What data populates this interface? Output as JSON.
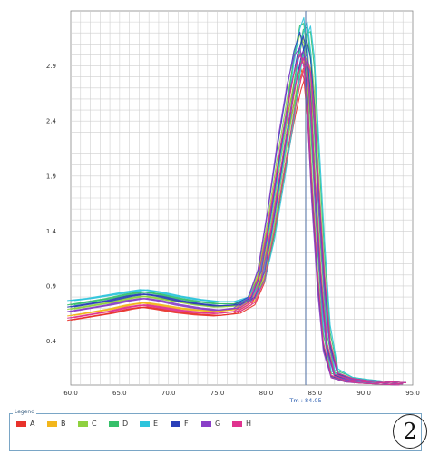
{
  "chart_data": {
    "type": "line",
    "xlim": [
      60.0,
      95.0
    ],
    "ylim": [
      0.0,
      3.4
    ],
    "x_ticks": [
      "60.0",
      "65.0",
      "70.0",
      "75.0",
      "80.0",
      "85.0",
      "90.0",
      "95.0"
    ],
    "y_ticks": [
      "0.4",
      "0.9",
      "1.4",
      "1.9",
      "2.4",
      "2.9"
    ],
    "y_tick_values": [
      0.4,
      0.9,
      1.4,
      1.9,
      2.4,
      2.9
    ],
    "grid": true,
    "tm_line": {
      "x": 84.05,
      "label": "Tm : 84.05"
    },
    "legend_position": "bottom",
    "legend_title": "Legend",
    "x": [
      60,
      62,
      64,
      66,
      67.5,
      69,
      71,
      73,
      75,
      77,
      78.5,
      79.5,
      80.5,
      81.5,
      82.5,
      83.2,
      83.8,
      84.2,
      84.6,
      85,
      85.6,
      86.2,
      87,
      88.5,
      90,
      92,
      94
    ],
    "series": [
      {
        "name": "A",
        "values": [
          0.6,
          0.63,
          0.66,
          0.7,
          0.72,
          0.7,
          0.67,
          0.65,
          0.64,
          0.66,
          0.74,
          0.95,
          1.4,
          1.95,
          2.45,
          2.75,
          2.92,
          2.8,
          2.4,
          1.75,
          0.95,
          0.35,
          0.08,
          0.04,
          0.03,
          0.02,
          0.01
        ]
      },
      {
        "name": "B",
        "values": [
          0.64,
          0.67,
          0.7,
          0.74,
          0.76,
          0.74,
          0.71,
          0.69,
          0.68,
          0.7,
          0.78,
          1.0,
          1.45,
          2.0,
          2.5,
          2.85,
          3.05,
          2.95,
          2.55,
          1.85,
          1.0,
          0.38,
          0.09,
          0.05,
          0.03,
          0.02,
          0.01
        ]
      },
      {
        "name": "C",
        "values": [
          0.7,
          0.73,
          0.76,
          0.8,
          0.82,
          0.8,
          0.77,
          0.74,
          0.72,
          0.73,
          0.8,
          1.02,
          1.5,
          2.08,
          2.62,
          2.98,
          3.2,
          3.12,
          2.72,
          1.98,
          1.08,
          0.4,
          0.1,
          0.05,
          0.03,
          0.02,
          0.01
        ]
      },
      {
        "name": "D",
        "values": [
          0.74,
          0.77,
          0.8,
          0.84,
          0.86,
          0.84,
          0.8,
          0.77,
          0.75,
          0.75,
          0.8,
          0.98,
          1.4,
          1.98,
          2.55,
          3.0,
          3.28,
          3.3,
          2.95,
          2.2,
          1.25,
          0.48,
          0.12,
          0.06,
          0.04,
          0.02,
          0.01
        ]
      },
      {
        "name": "E",
        "values": [
          0.78,
          0.8,
          0.83,
          0.86,
          0.88,
          0.86,
          0.82,
          0.79,
          0.77,
          0.77,
          0.81,
          0.96,
          1.35,
          1.9,
          2.48,
          2.95,
          3.25,
          3.35,
          3.05,
          2.35,
          1.38,
          0.55,
          0.14,
          0.06,
          0.04,
          0.02,
          0.01
        ]
      },
      {
        "name": "F",
        "values": [
          0.72,
          0.75,
          0.78,
          0.82,
          0.84,
          0.82,
          0.78,
          0.75,
          0.73,
          0.74,
          0.81,
          1.05,
          1.58,
          2.18,
          2.72,
          3.05,
          3.22,
          3.05,
          2.6,
          1.85,
          0.98,
          0.36,
          0.09,
          0.05,
          0.03,
          0.02,
          0.01
        ]
      },
      {
        "name": "G",
        "values": [
          0.68,
          0.71,
          0.74,
          0.78,
          0.8,
          0.78,
          0.74,
          0.71,
          0.69,
          0.71,
          0.8,
          1.06,
          1.6,
          2.22,
          2.75,
          3.0,
          3.08,
          2.9,
          2.45,
          1.7,
          0.88,
          0.32,
          0.08,
          0.04,
          0.03,
          0.02,
          0.01
        ]
      },
      {
        "name": "H",
        "values": [
          0.62,
          0.65,
          0.68,
          0.72,
          0.74,
          0.72,
          0.69,
          0.67,
          0.66,
          0.68,
          0.76,
          0.98,
          1.44,
          2.0,
          2.52,
          2.85,
          3.02,
          2.92,
          2.55,
          1.9,
          1.05,
          0.4,
          0.1,
          0.05,
          0.03,
          0.02,
          0.01
        ]
      }
    ],
    "colors": {
      "A": "#e8322b",
      "B": "#f2b61c",
      "C": "#8fd13f",
      "D": "#36c06a",
      "E": "#2ec4dc",
      "F": "#2a3fb8",
      "G": "#8a3fc8",
      "H": "#e0338f"
    }
  },
  "panel_label": "2"
}
